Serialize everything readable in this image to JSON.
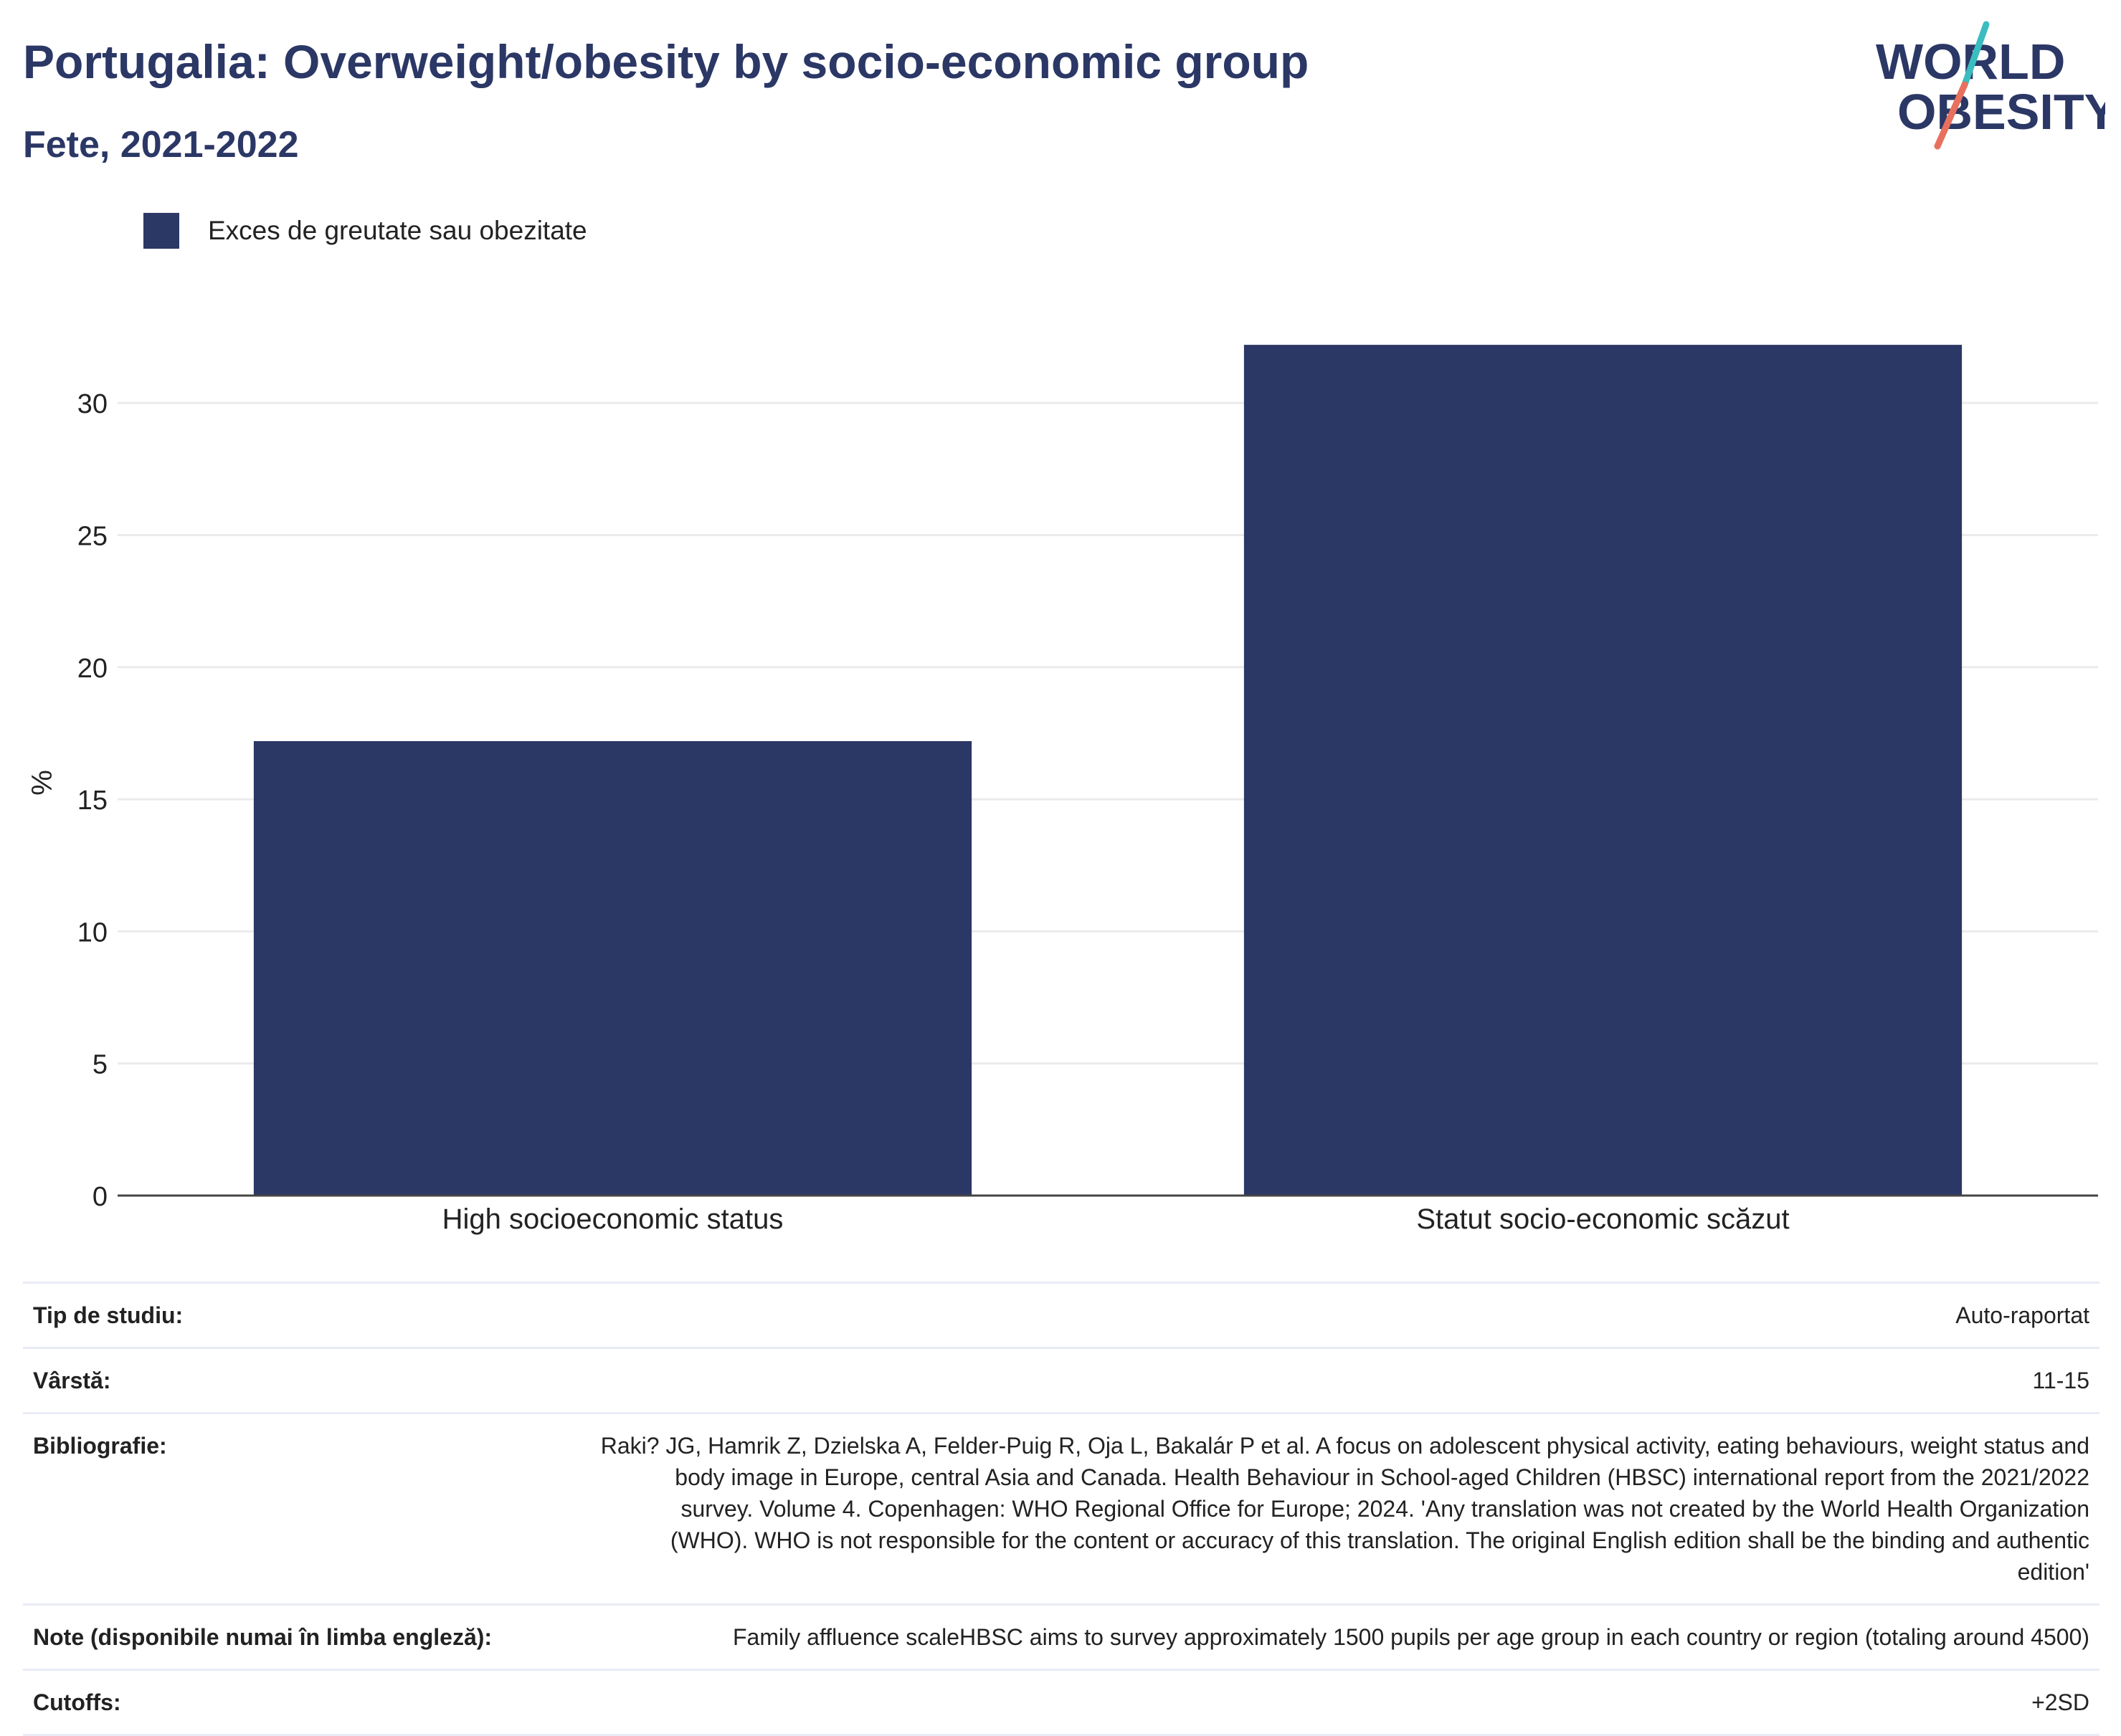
{
  "header": {
    "title": "Portugalia: Overweight/obesity by socio-economic group",
    "subtitle": "Fete, 2021-2022"
  },
  "logo": {
    "line1": "WORLD",
    "line2": "OBESITY",
    "icon": "world-obesity-logo"
  },
  "legend": {
    "label": "Exces de greutate sau obezitate"
  },
  "colors": {
    "bar": "#2b3765",
    "title": "#2b3765",
    "grid": "#ebebeb",
    "logo_teal": "#3bbcc0",
    "logo_coral": "#e8705e"
  },
  "chart_data": {
    "type": "bar",
    "categories": [
      "High socioeconomic status",
      "Statut socio-economic scăzut"
    ],
    "series": [
      {
        "name": "Exces de greutate sau obezitate",
        "values": [
          17.2,
          32.2
        ]
      }
    ],
    "ylabel": "%",
    "xlabel": "",
    "ylim": [
      0,
      34.4
    ],
    "yticks": [
      0,
      5,
      10,
      15,
      20,
      25,
      30
    ],
    "grid": true,
    "legend_position": "top-left"
  },
  "meta": [
    {
      "key": "Tip de studiu:",
      "value": "Auto-raportat"
    },
    {
      "key": "Vârstă:",
      "value": "11-15"
    },
    {
      "key": "Bibliografie:",
      "value": "Raki? JG, Hamrik Z, Dzielska A, Felder-Puig R, Oja L, Bakalár P et al. A focus on adolescent physical activity, eating behaviours, weight status and body image in Europe, central Asia and Canada. Health Behaviour in School-aged Children (HBSC) international report from the 2021/2022 survey. Volume 4. Copenhagen: WHO Regional Office for Europe; 2024. 'Any translation was not created by the World Health Organization (WHO). WHO is not responsible for the content or accuracy of this translation. The original English edition shall be the binding and authentic edition'"
    },
    {
      "key": "Note (disponibile numai în limba engleză):",
      "value": "Family affluence scaleHBSC aims to survey approximately 1500 pupils per age group in each country or region (totaling around 4500)"
    },
    {
      "key": "Cutoffs:",
      "value": "+2SD"
    }
  ]
}
